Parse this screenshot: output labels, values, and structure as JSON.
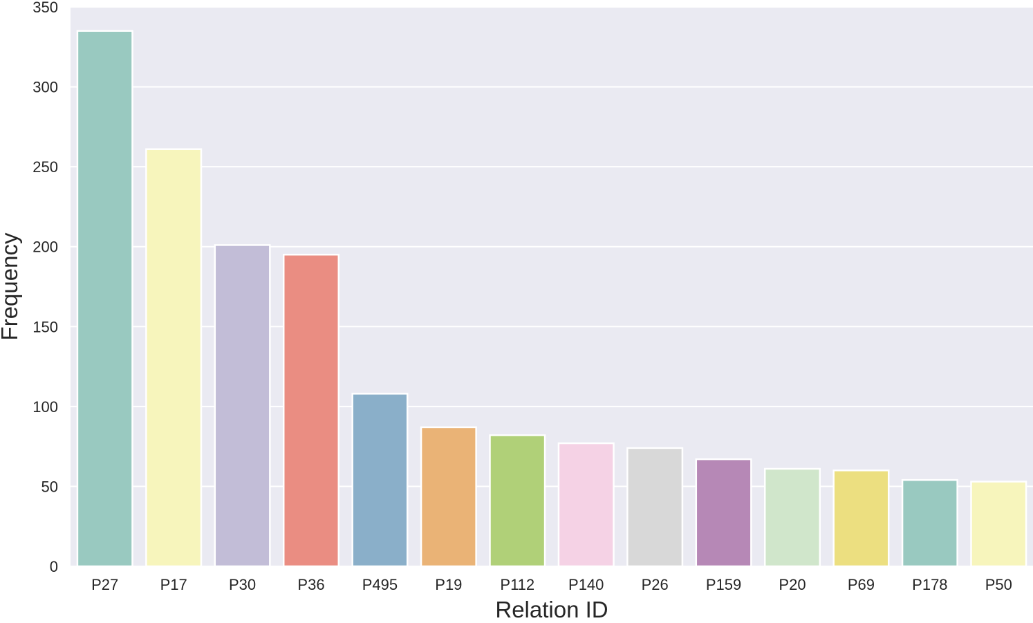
{
  "chart_data": {
    "type": "bar",
    "title": "",
    "xlabel": "Relation ID",
    "ylabel": "Frequency",
    "ylim": [
      0,
      350
    ],
    "yticks": [
      0,
      50,
      100,
      150,
      200,
      250,
      300,
      350
    ],
    "grid": true,
    "categories": [
      "P27",
      "P17",
      "P30",
      "P36",
      "P495",
      "P19",
      "P112",
      "P140",
      "P26",
      "P159",
      "P20",
      "P69",
      "P178",
      "P50"
    ],
    "values": [
      335,
      261,
      201,
      195,
      108,
      87,
      82,
      77,
      74,
      67,
      61,
      60,
      54,
      53
    ],
    "colors": [
      "#99c9c0",
      "#f7f5bc",
      "#c2bdd7",
      "#ea8d82",
      "#8aafc9",
      "#eab376",
      "#b0d078",
      "#f5d2e5",
      "#d8d8d8",
      "#b688b6",
      "#d0e6cb",
      "#ecdf80",
      "#99c9c0",
      "#f7f5bc"
    ],
    "plot_background": "#eaeaf2",
    "grid_color": "#ffffff"
  }
}
